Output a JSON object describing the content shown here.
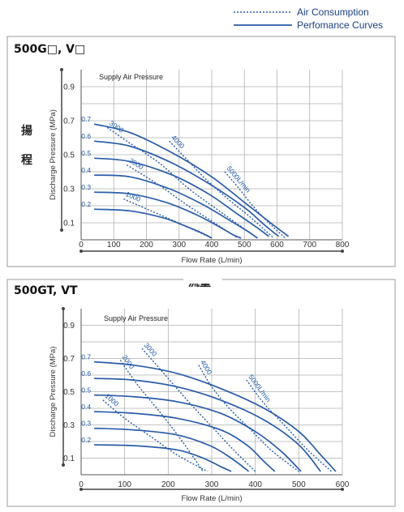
{
  "legend": {
    "air_consumption": "Air Consumption",
    "performance_curves": "Perfomance Curves"
  },
  "side_text": {
    "left_char_1": "揚",
    "left_char_2": "程",
    "middle": "流量"
  },
  "colors": {
    "performance": "#2a5ca8",
    "air": "#2a5ca8",
    "grid": "#b0b0b0",
    "axis": "#555555",
    "frame": "#9a9a9a"
  },
  "chart_data": [
    {
      "type": "line",
      "title": "500G□, V□",
      "xlabel": "Flow Rate (L/min)",
      "ylabel": "Discharge Pressure (MPa)",
      "annotation": "Supply Air Pressure",
      "xlim": [
        0,
        800
      ],
      "ylim": [
        0,
        1.0
      ],
      "xticks": [
        0,
        100,
        200,
        300,
        400,
        500,
        600,
        700,
        800
      ],
      "yticks": [
        0.1,
        0.3,
        0.5,
        0.7,
        0.9
      ],
      "y_label_ticks": [
        "0.1",
        "0.3",
        "0.5",
        "0.7",
        "0.9"
      ],
      "grid": true,
      "series": [
        {
          "name": "0.7",
          "x": [
            40,
            150,
            280,
            400,
            500,
            580,
            635
          ],
          "y": [
            0.68,
            0.63,
            0.51,
            0.37,
            0.22,
            0.1,
            0.02
          ]
        },
        {
          "name": "0.6",
          "x": [
            40,
            150,
            280,
            400,
            500,
            560,
            605
          ],
          "y": [
            0.58,
            0.55,
            0.45,
            0.32,
            0.19,
            0.09,
            0.02
          ]
        },
        {
          "name": "0.5",
          "x": [
            40,
            150,
            280,
            390,
            480,
            540,
            575
          ],
          "y": [
            0.48,
            0.46,
            0.38,
            0.27,
            0.15,
            0.07,
            0.02
          ]
        },
        {
          "name": "0.4",
          "x": [
            40,
            150,
            270,
            370,
            450,
            510,
            540
          ],
          "y": [
            0.38,
            0.37,
            0.3,
            0.21,
            0.12,
            0.05,
            0.01
          ]
        },
        {
          "name": "0.3",
          "x": [
            40,
            150,
            260,
            350,
            420,
            465,
            490
          ],
          "y": [
            0.28,
            0.27,
            0.22,
            0.15,
            0.08,
            0.03,
            0.01
          ]
        },
        {
          "name": "0.2",
          "x": [
            40,
            150,
            250,
            320,
            370,
            400
          ],
          "y": [
            0.18,
            0.17,
            0.13,
            0.08,
            0.04,
            0.01
          ]
        }
      ],
      "air_consumption": [
        {
          "name": "1000",
          "x": [
            130,
            250,
            320,
            400
          ],
          "y": [
            0.24,
            0.14,
            0.08,
            0.01
          ]
        },
        {
          "name": "2000",
          "x": [
            140,
            240,
            320,
            400,
            480
          ],
          "y": [
            0.44,
            0.32,
            0.21,
            0.11,
            0.01
          ]
        },
        {
          "name": "3000",
          "x": [
            80,
            140,
            240,
            330,
            430,
            540
          ],
          "y": [
            0.66,
            0.58,
            0.45,
            0.3,
            0.16,
            0.01
          ]
        },
        {
          "name": "4000",
          "x": [
            270,
            320,
            380,
            450,
            520,
            590
          ],
          "y": [
            0.58,
            0.48,
            0.36,
            0.24,
            0.13,
            0.01
          ]
        },
        {
          "name": "5000L/min",
          "x": [
            440,
            480,
            530,
            580,
            625
          ],
          "y": [
            0.4,
            0.31,
            0.19,
            0.09,
            0.01
          ]
        }
      ]
    },
    {
      "type": "line",
      "title": "500GT, VT",
      "xlabel": "Flow Rate (L/min)",
      "ylabel": "Discharge Pressure (MPa)",
      "annotation": "Supply Air Pressure",
      "xlim": [
        0,
        600
      ],
      "ylim": [
        0,
        1.0
      ],
      "xticks": [
        0,
        100,
        200,
        300,
        400,
        500,
        600
      ],
      "yticks": [
        0.1,
        0.3,
        0.5,
        0.7,
        0.9
      ],
      "y_label_ticks": [
        "0.1",
        "0.3",
        "0.5",
        "0.7",
        "0.9"
      ],
      "grid": true,
      "series": [
        {
          "name": "0.7",
          "x": [
            30,
            120,
            220,
            320,
            420,
            500,
            550,
            585
          ],
          "y": [
            0.68,
            0.66,
            0.61,
            0.52,
            0.4,
            0.26,
            0.12,
            0.02
          ]
        },
        {
          "name": "0.6",
          "x": [
            30,
            120,
            220,
            320,
            420,
            500,
            550
          ],
          "y": [
            0.58,
            0.57,
            0.53,
            0.45,
            0.33,
            0.18,
            0.02
          ]
        },
        {
          "name": "0.5",
          "x": [
            30,
            120,
            220,
            320,
            400,
            460,
            505
          ],
          "y": [
            0.48,
            0.47,
            0.44,
            0.37,
            0.26,
            0.14,
            0.02
          ]
        },
        {
          "name": "0.4",
          "x": [
            30,
            120,
            220,
            320,
            380,
            420,
            445
          ],
          "y": [
            0.38,
            0.37,
            0.34,
            0.27,
            0.18,
            0.08,
            0.02
          ]
        },
        {
          "name": "0.3",
          "x": [
            30,
            120,
            220,
            300,
            350,
            385
          ],
          "y": [
            0.28,
            0.27,
            0.24,
            0.17,
            0.09,
            0.02
          ]
        },
        {
          "name": "0.2",
          "x": [
            30,
            120,
            220,
            280,
            320,
            345
          ],
          "y": [
            0.18,
            0.175,
            0.15,
            0.1,
            0.05,
            0.02
          ]
        }
      ],
      "air_consumption": [
        {
          "name": "1000",
          "x": [
            50,
            100,
            160,
            220,
            290
          ],
          "y": [
            0.45,
            0.34,
            0.23,
            0.12,
            0.02
          ]
        },
        {
          "name": "2000",
          "x": [
            90,
            130,
            180,
            230,
            280
          ],
          "y": [
            0.69,
            0.54,
            0.38,
            0.21,
            0.02
          ]
        },
        {
          "name": "3000",
          "x": [
            140,
            200,
            250,
            300,
            350,
            400
          ],
          "y": [
            0.76,
            0.58,
            0.43,
            0.29,
            0.15,
            0.02
          ]
        },
        {
          "name": "4000",
          "x": [
            270,
            300,
            340,
            390,
            440,
            500
          ],
          "y": [
            0.66,
            0.53,
            0.4,
            0.27,
            0.14,
            0.02
          ]
        },
        {
          "name": "5000L/min",
          "x": [
            380,
            420,
            470,
            520,
            575
          ],
          "y": [
            0.57,
            0.43,
            0.29,
            0.15,
            0.02
          ]
        }
      ]
    }
  ]
}
